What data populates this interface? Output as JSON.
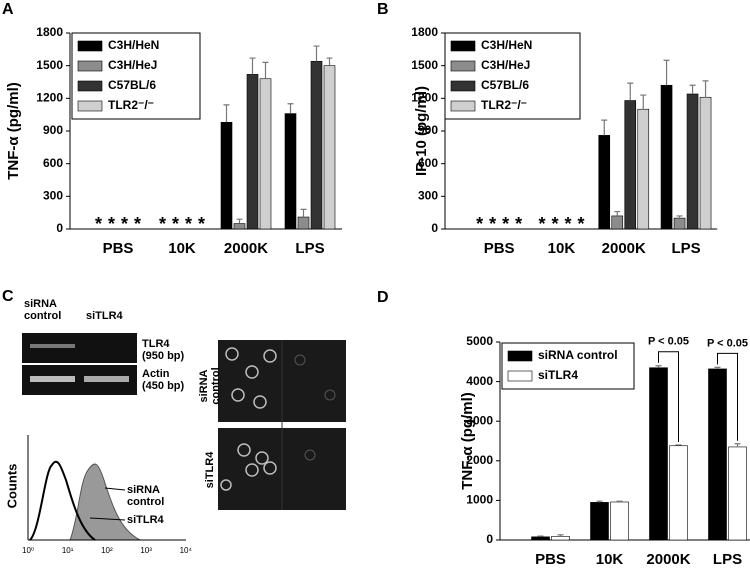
{
  "chart_data": [
    {
      "type": "bar",
      "label": "A",
      "y_label": "TNF-α (pg/ml)",
      "categories": [
        "PBS",
        "10K",
        "2000K",
        "LPS"
      ],
      "ylim": [
        0,
        1800
      ],
      "yticks": [
        0,
        300,
        600,
        900,
        1200,
        1500,
        1800
      ],
      "legend": "upper left",
      "series": [
        {
          "name": "C3H/HeN",
          "color": "#000000",
          "values": [
            null,
            null,
            980,
            1060
          ],
          "errors": [
            null,
            null,
            160,
            90
          ],
          "value_labels": [
            "*",
            "*",
            null,
            null
          ]
        },
        {
          "name": "C3H/HeJ",
          "color": "#8c8c8c",
          "values": [
            null,
            null,
            50,
            110
          ],
          "errors": [
            null,
            null,
            40,
            70
          ],
          "value_labels": [
            "*",
            "*",
            null,
            null
          ]
        },
        {
          "name": "C57BL/6",
          "color": "#333333",
          "values": [
            null,
            null,
            1420,
            1540
          ],
          "errors": [
            null,
            null,
            150,
            140
          ],
          "value_labels": [
            "*",
            "*",
            null,
            null
          ]
        },
        {
          "name": "TLR2⁻/⁻",
          "color": "#cfcfcf",
          "values": [
            null,
            null,
            1380,
            1500
          ],
          "errors": [
            null,
            null,
            150,
            70
          ],
          "value_labels": [
            "*",
            "*",
            null,
            null
          ]
        }
      ]
    },
    {
      "type": "bar",
      "label": "B",
      "y_label": "IP-10 (pg/ml)",
      "categories": [
        "PBS",
        "10K",
        "2000K",
        "LPS"
      ],
      "ylim": [
        0,
        1800
      ],
      "yticks": [
        0,
        300,
        600,
        900,
        1200,
        1500,
        1800
      ],
      "legend": "upper left",
      "series": [
        {
          "name": "C3H/HeN",
          "color": "#000000",
          "values": [
            null,
            null,
            860,
            1320
          ],
          "errors": [
            null,
            null,
            140,
            230
          ],
          "value_labels": [
            "*",
            "*",
            null,
            null
          ]
        },
        {
          "name": "C3H/HeJ",
          "color": "#8c8c8c",
          "values": [
            null,
            null,
            120,
            100
          ],
          "errors": [
            null,
            null,
            40,
            20
          ],
          "value_labels": [
            "*",
            "*",
            null,
            null
          ]
        },
        {
          "name": "C57BL/6",
          "color": "#333333",
          "values": [
            null,
            null,
            1180,
            1240
          ],
          "errors": [
            null,
            null,
            160,
            80
          ],
          "value_labels": [
            "*",
            "*",
            null,
            null
          ]
        },
        {
          "name": "TLR2⁻/⁻",
          "color": "#cfcfcf",
          "values": [
            null,
            null,
            1100,
            1210
          ],
          "errors": [
            null,
            null,
            130,
            150
          ],
          "value_labels": [
            "*",
            "*",
            null,
            null
          ]
        }
      ]
    },
    {
      "type": "bar",
      "label": "D",
      "y_label": "TNF-α (pg/ml)",
      "categories": [
        "PBS",
        "10K",
        "2000K",
        "LPS"
      ],
      "ylim": [
        0,
        5000
      ],
      "yticks": [
        0,
        1000,
        2000,
        3000,
        4000,
        5000
      ],
      "legend": "upper left",
      "series": [
        {
          "name": "siRNA control",
          "color": "#000000",
          "values": [
            80,
            950,
            4350,
            4320
          ],
          "errors": [
            20,
            30,
            50,
            40
          ]
        },
        {
          "name": "siTLR4",
          "color": "#ffffff",
          "values": [
            90,
            960,
            2380,
            2350
          ],
          "errors": [
            40,
            20,
            20,
            80
          ]
        }
      ],
      "annotations": [
        {
          "text": "P < 0.05",
          "x": "2000K"
        },
        {
          "text": "P < 0.05",
          "x": "LPS"
        }
      ]
    }
  ],
  "panel_c": {
    "label": "C",
    "gel": {
      "lanes": [
        "siRNA control",
        "siTLR4"
      ],
      "bands": [
        "TLR4 (950 bp)",
        "Actin (450 bp)"
      ]
    },
    "histogram": {
      "y_label": "Counts",
      "xticks": [
        "10⁰",
        "10¹",
        "10²",
        "10³",
        "10⁴"
      ],
      "curves": [
        "siRNA control",
        "siTLR4"
      ]
    },
    "microscopy": {
      "rows": [
        "siRNA control",
        "siTLR4"
      ]
    }
  }
}
